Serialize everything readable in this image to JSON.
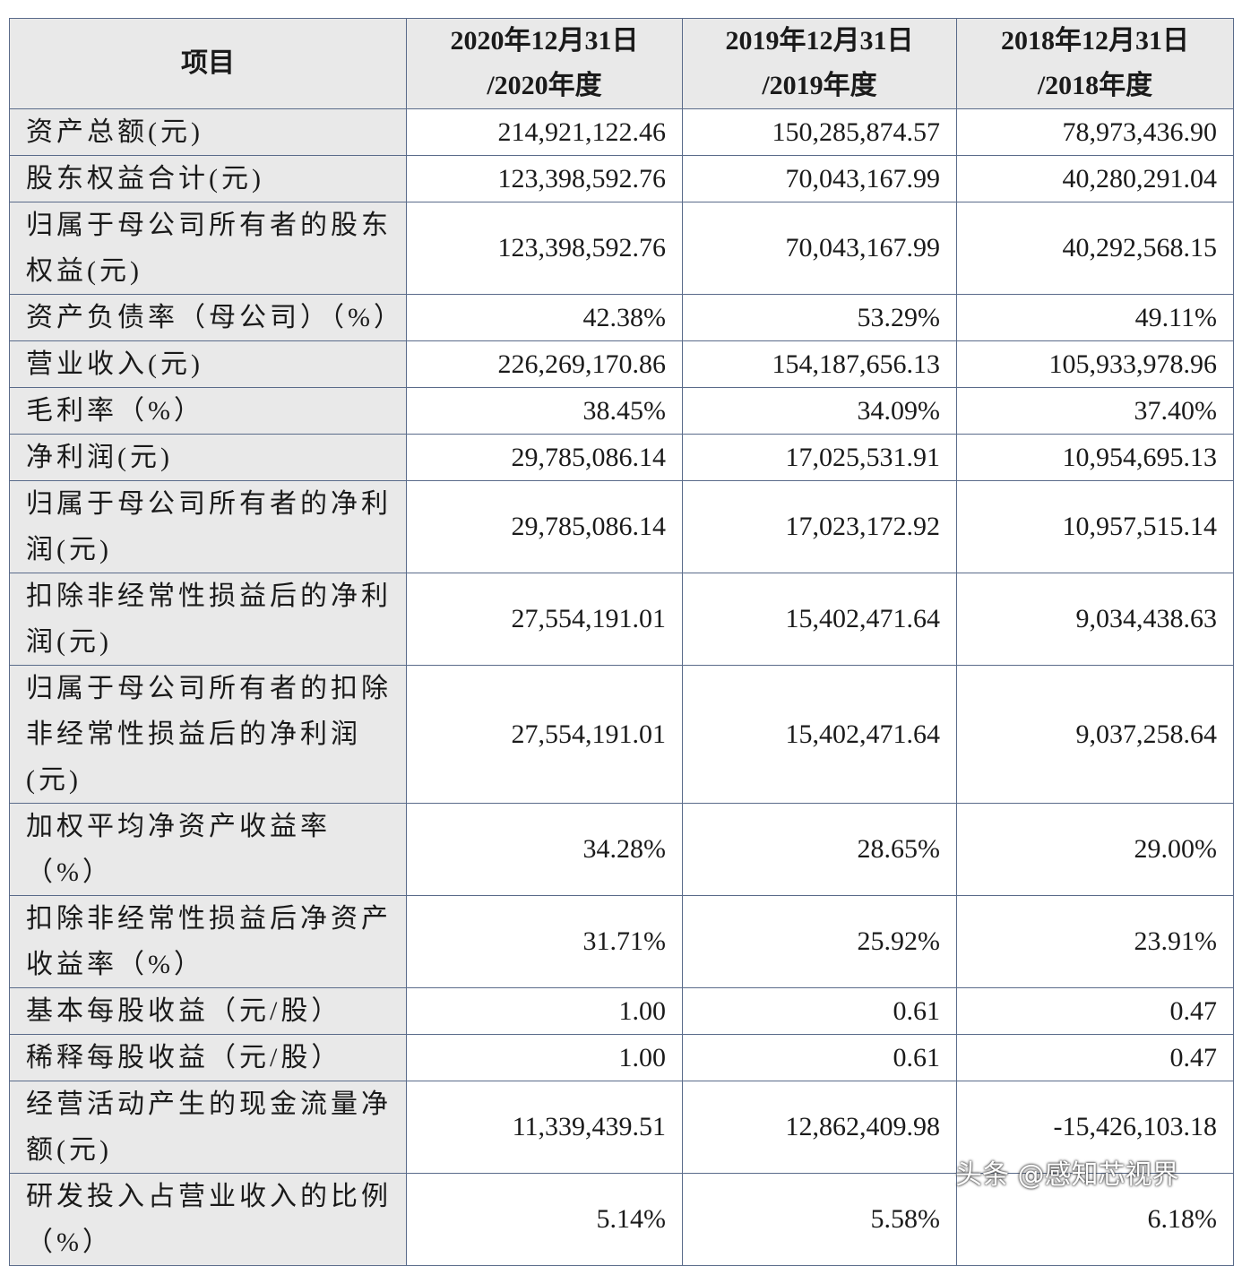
{
  "table": {
    "header": [
      "项目",
      [
        "2020年12月31日",
        "/2020年度"
      ],
      [
        "2019年12月31日",
        "/2019年度"
      ],
      [
        "2018年12月31日",
        "/2018年度"
      ]
    ],
    "rows": [
      [
        "资产总额(元)",
        "214,921,122.46",
        "150,285,874.57",
        "78,973,436.90"
      ],
      [
        "股东权益合计(元)",
        "123,398,592.76",
        "70,043,167.99",
        "40,280,291.04"
      ],
      [
        "归属于母公司所有者的股东权益(元)",
        "123,398,592.76",
        "70,043,167.99",
        "40,292,568.15"
      ],
      [
        "资产负债率（母公司）（%）",
        "42.38%",
        "53.29%",
        "49.11%"
      ],
      [
        "营业收入(元)",
        "226,269,170.86",
        "154,187,656.13",
        "105,933,978.96"
      ],
      [
        "毛利率（%）",
        "38.45%",
        "34.09%",
        "37.40%"
      ],
      [
        "净利润(元)",
        "29,785,086.14",
        "17,025,531.91",
        "10,954,695.13"
      ],
      [
        "归属于母公司所有者的净利润(元)",
        "29,785,086.14",
        "17,023,172.92",
        "10,957,515.14"
      ],
      [
        "扣除非经常性损益后的净利润(元)",
        "27,554,191.01",
        "15,402,471.64",
        "9,034,438.63"
      ],
      [
        "归属于母公司所有者的扣除非经常性损益后的净利润(元)",
        "27,554,191.01",
        "15,402,471.64",
        "9,037,258.64"
      ],
      [
        "加权平均净资产收益率（%）",
        "34.28%",
        "28.65%",
        "29.00%"
      ],
      [
        "扣除非经常性损益后净资产收益率（%）",
        "31.71%",
        "25.92%",
        "23.91%"
      ],
      [
        "基本每股收益（元/股）",
        "1.00",
        "0.61",
        "0.47"
      ],
      [
        "稀释每股收益（元/股）",
        "1.00",
        "0.61",
        "0.47"
      ],
      [
        "经营活动产生的现金流量净额(元)",
        "11,339,439.51",
        "12,862,409.98",
        "-15,426,103.18"
      ],
      [
        "研发投入占营业收入的比例（%）",
        "5.14%",
        "5.58%",
        "6.18%"
      ]
    ]
  },
  "watermark": "头条 @感知芯视界"
}
